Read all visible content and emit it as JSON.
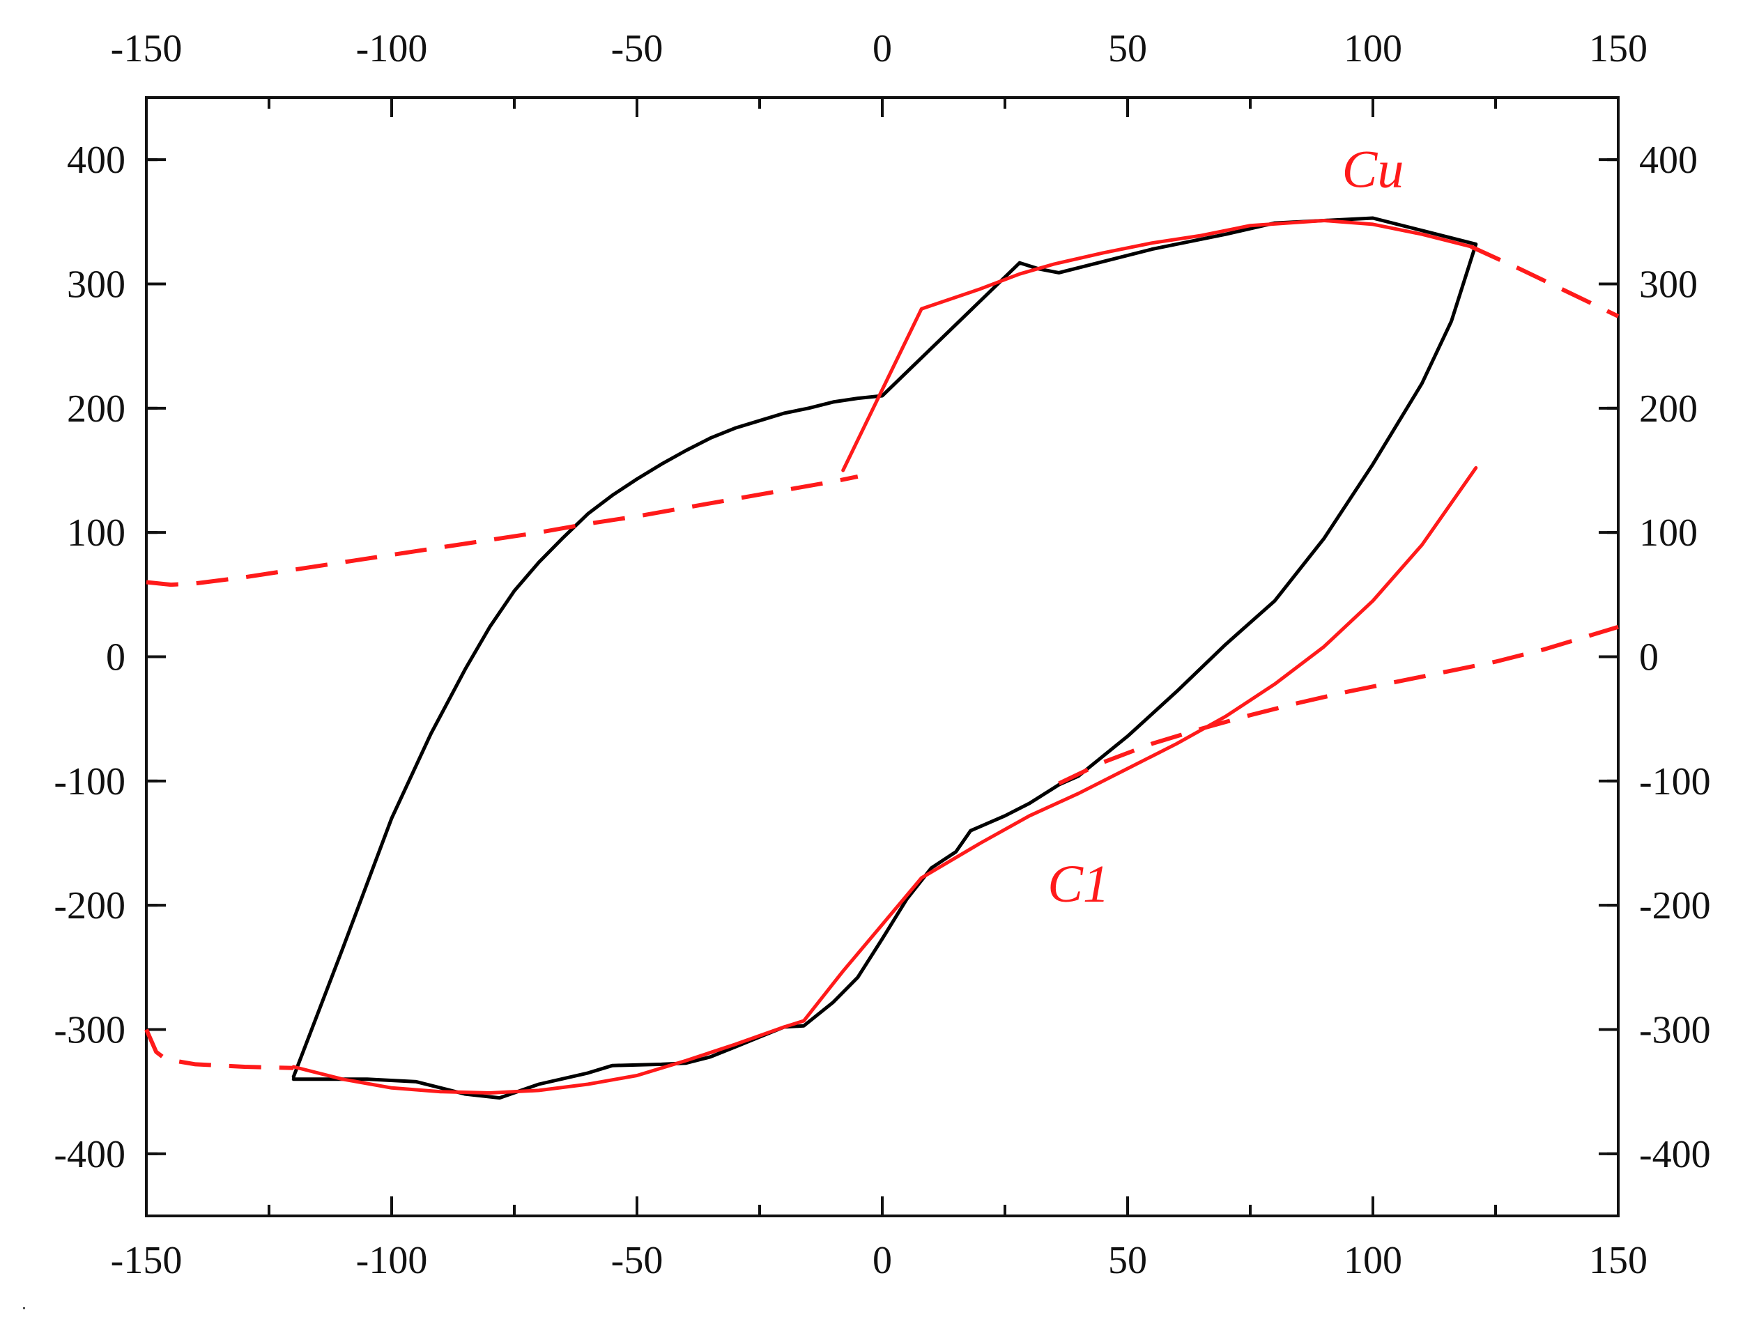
{
  "chart_data": {
    "type": "line",
    "title": "",
    "xlabel": "",
    "ylabel": "",
    "xlim": [
      -150,
      150
    ],
    "ylim": [
      -450,
      450
    ],
    "x_ticks": [
      -150,
      -100,
      -50,
      0,
      50,
      100,
      150
    ],
    "y_ticks": [
      -400,
      -300,
      -200,
      -100,
      0,
      100,
      200,
      300,
      400
    ],
    "x_tick_labels": [
      "-150",
      "-100",
      "-50",
      "0",
      "50",
      "100",
      "150"
    ],
    "y_tick_labels": [
      "-400",
      "-300",
      "-200",
      "-100",
      "0",
      "100",
      "200",
      "300",
      "400"
    ],
    "grid": false,
    "mirrored_axes": true,
    "series": [
      {
        "color": "#000000",
        "style": "solid",
        "x": [
          -120,
          -110,
          -100,
          -92,
          -85,
          -80,
          -75,
          -70,
          -65,
          -60,
          -55,
          -50,
          -45,
          -40,
          -35,
          -30,
          -25,
          -20,
          -15,
          -10,
          -5,
          0,
          28,
          32,
          36,
          45,
          55,
          70,
          80,
          90,
          100,
          110,
          121,
          116,
          110,
          100,
          90,
          80,
          70,
          60,
          50,
          40,
          36,
          30,
          25,
          18,
          15,
          10,
          5,
          0,
          -5,
          -10,
          -16,
          -20,
          -25,
          -30,
          -35,
          -40,
          -45,
          -55,
          -60,
          -70,
          -78,
          -85,
          -95,
          -105,
          -120
        ],
        "y": [
          -338,
          -235,
          -130,
          -62,
          -10,
          24,
          53,
          76,
          96,
          115,
          130,
          143,
          155,
          166,
          176,
          184,
          190,
          196,
          200,
          205,
          208,
          210,
          317,
          312,
          309,
          318,
          328,
          340,
          349,
          351,
          353,
          343,
          332,
          270,
          220,
          155,
          95,
          45,
          10,
          -28,
          -64,
          -96,
          -103,
          -118,
          -128,
          -140,
          -157,
          -170,
          -195,
          -227,
          -258,
          -278,
          -297,
          -298,
          -306,
          -314,
          -322,
          -327,
          -328,
          -329,
          -335,
          -344,
          -355,
          -352,
          -342,
          -340,
          -340
        ]
      },
      {
        "color": "#ff1a1a",
        "style": "solid",
        "x": [
          -120,
          -110,
          -100,
          -90,
          -80,
          -70,
          -60,
          -50,
          -40,
          -30,
          -20,
          -16,
          -10,
          -8,
          8,
          20,
          30,
          40,
          50,
          60,
          70,
          80,
          90,
          100,
          110,
          121
        ],
        "y": [
          -330,
          -340,
          -347,
          -350,
          -351,
          -349,
          -344,
          -337,
          -325,
          -312,
          -298,
          -293,
          -263,
          -253,
          -178,
          -150,
          -128,
          -110,
          -90,
          -70,
          -48,
          -22,
          8,
          45,
          90,
          152
        ]
      },
      {
        "color": "#ff1a1a",
        "style": "dashed",
        "x": [
          -150,
          -145,
          -140,
          -130,
          -120,
          -110,
          -100,
          -90,
          -80,
          -70,
          -60,
          -50,
          -40,
          -30,
          -20,
          -10,
          -5
        ],
        "y": [
          60,
          58,
          59,
          64,
          70,
          76,
          82,
          88,
          94,
          100,
          107,
          113,
          120,
          127,
          134,
          141,
          145
        ]
      },
      {
        "color": "#ff1a1a",
        "style": "solid",
        "x": [
          -8,
          8,
          20,
          28,
          35,
          45,
          55,
          65,
          75,
          90,
          100,
          110,
          120
        ],
        "y": [
          150,
          280,
          296,
          308,
          316,
          325,
          333,
          339,
          347,
          351,
          348,
          340,
          330
        ]
      },
      {
        "color": "#ff1a1a",
        "style": "dashed",
        "x": [
          120,
          130,
          140,
          150
        ],
        "y": [
          330,
          312,
          293,
          274
        ]
      },
      {
        "color": "#ff1a1a",
        "style": "dashed",
        "x": [
          -150,
          -148,
          -146,
          -140,
          -130,
          -120
        ],
        "y": [
          -300,
          -318,
          -324,
          -328,
          -330,
          -331
        ]
      },
      {
        "color": "#ff1a1a",
        "style": "dashed",
        "x": [
          36,
          45,
          55,
          65,
          75,
          85,
          95,
          105,
          115,
          125,
          135,
          145,
          150
        ],
        "y": [
          -102,
          -85,
          -70,
          -58,
          -47,
          -37,
          -28,
          -20,
          -12,
          -4,
          6,
          18,
          24
        ]
      }
    ],
    "annotations": [
      {
        "text": "Cu",
        "x": 100,
        "y": 378,
        "color": "#ff1a1a"
      },
      {
        "text": "C1",
        "x": 40,
        "y": -197,
        "color": "#ff1a1a"
      }
    ]
  }
}
